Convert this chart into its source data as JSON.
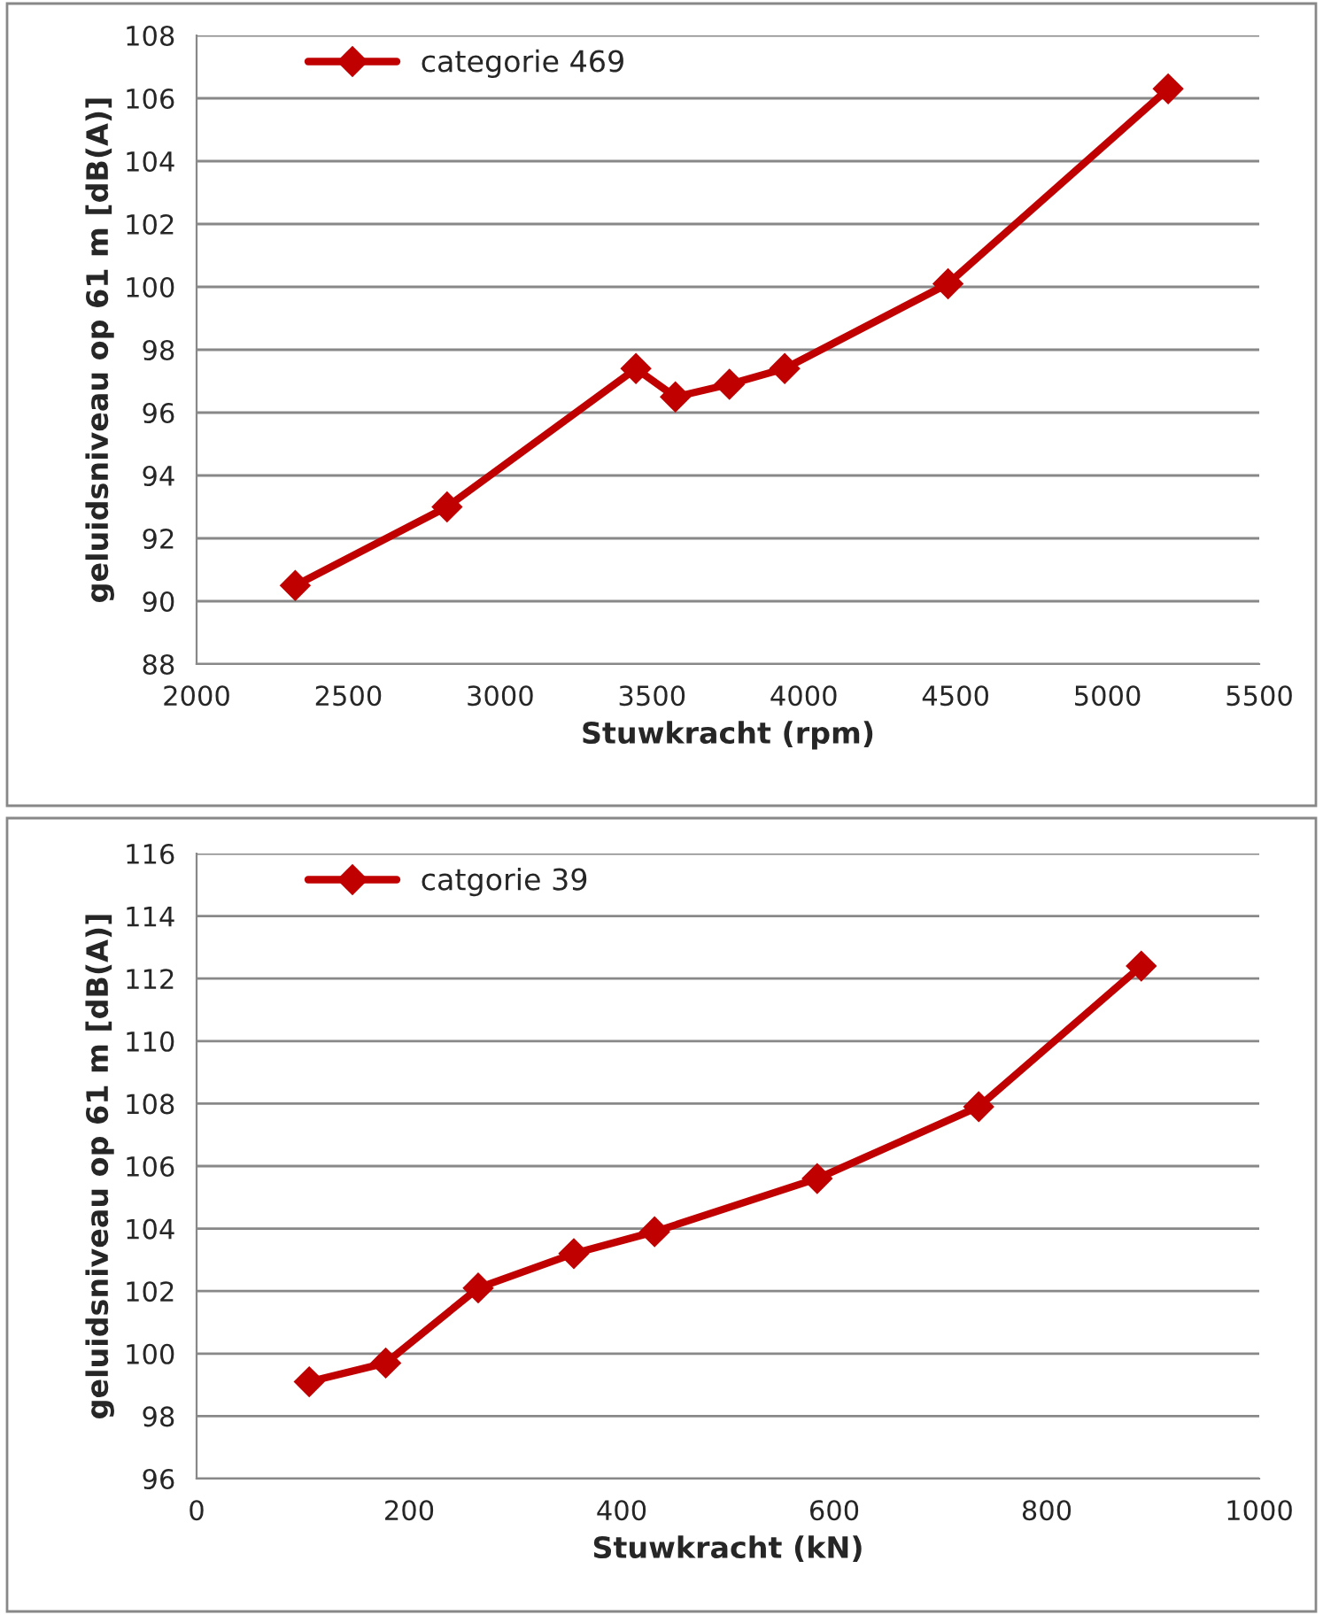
{
  "chart_data": [
    {
      "type": "line",
      "xlabel": "Stuwkracht (rpm)",
      "ylabel": "geluidsniveau op 61 m [dB(A)]",
      "series": [
        {
          "name": "categorie 469",
          "color": "#c00000",
          "x": [
            2325,
            2825,
            3447,
            3577,
            3755,
            3937,
            4475,
            5200
          ],
          "values": [
            90.5,
            93.0,
            97.4,
            96.5,
            96.9,
            97.4,
            100.1,
            106.3
          ]
        }
      ],
      "xlim": [
        2000,
        5500
      ],
      "xticks": [
        2000,
        2500,
        3000,
        3500,
        4000,
        4500,
        5000,
        5500
      ],
      "ylim": [
        88,
        108
      ],
      "yticks": [
        88,
        90,
        92,
        94,
        96,
        98,
        100,
        102,
        104,
        106,
        108
      ],
      "grid": "y",
      "legend": "top left",
      "marker": "diamond",
      "line_style": "solid"
    },
    {
      "type": "line",
      "xlabel": "Stuwkracht (kN)",
      "ylabel": "geluidsniveau op 61 m [dB(A)]",
      "series": [
        {
          "name": "catgorie 39",
          "color": "#c00000",
          "x": [
            106,
            178,
            265,
            355,
            431,
            584,
            736,
            889
          ],
          "values": [
            99.1,
            99.7,
            102.1,
            103.2,
            103.9,
            105.6,
            107.9,
            112.4
          ]
        }
      ],
      "xlim": [
        0,
        1000
      ],
      "xticks": [
        0,
        200,
        400,
        600,
        800,
        1000
      ],
      "ylim": [
        96,
        116
      ],
      "yticks": [
        96,
        98,
        100,
        102,
        104,
        106,
        108,
        110,
        112,
        114,
        116
      ],
      "grid": "y",
      "legend": "top left",
      "marker": "diamond",
      "line_style": "solid"
    }
  ]
}
